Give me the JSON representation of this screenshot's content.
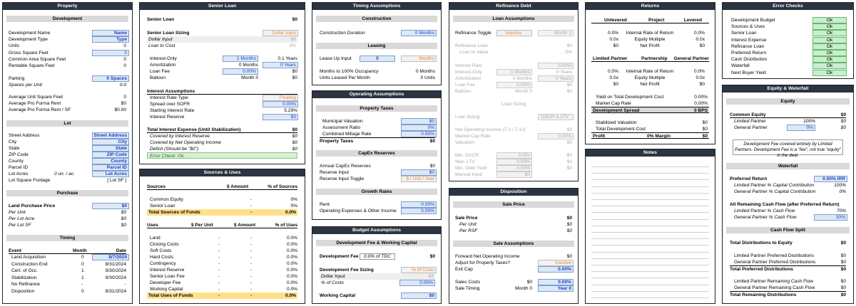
{
  "property": {
    "title": "Property",
    "sec_dev": "Development",
    "dev_name_lbl": "Development Name",
    "dev_name": "Name",
    "dev_type_lbl": "Development Type",
    "dev_type": "Type",
    "units_lbl": "Units",
    "units": "0",
    "gsf_lbl": "Gross Square Feet",
    "gsf": "0",
    "cam_lbl": "Common Area Square Feet",
    "cam": "0",
    "rsf_lbl": "Rentable Square Feet",
    "rsf": "0",
    "parking_lbl": "Parking",
    "parking": "0 Spaces",
    "spu_lbl": "Spaces per Unit",
    "spu": "0.0",
    "aus_lbl": "Average Unit Square Feet",
    "aus": "0",
    "apr_lbl": "Average Pro Forma Rent",
    "apr": "$0",
    "aprs_lbl": "Average Pro Forma Rent / SF",
    "aprs": "$0.00",
    "sec_lot": "Lot",
    "street_lbl": "Street Address",
    "street": "Street Address",
    "city_lbl": "City",
    "city": "City",
    "state_lbl": "State",
    "state": "State",
    "zip_lbl": "ZIP Code",
    "zip": "ZIP Code",
    "county_lbl": "County",
    "county": "County",
    "parcel_lbl": "Parcel ID",
    "parcel": "Parcel ID",
    "lotacres_lbl": "Lot Acres",
    "lotacres_un": "0 un. / ac.",
    "lotacres": "Lot Acres",
    "lotsf_lbl": "Lot Square Footage",
    "lotsf": "[ Lot SF ]",
    "sec_purchase": "Purchase",
    "lpp_lbl": "Land Purchase Price",
    "lpp": "$0",
    "pu_lbl": "Per Unit",
    "pu": "$0",
    "pla_lbl": "Per Lot Acre",
    "pla": "$0",
    "plsf_lbl": "Per Lot SF",
    "plsf": "$0",
    "sec_timing": "Timing",
    "h_event": "Event",
    "h_month": "Month",
    "h_date": "Date",
    "events": [
      {
        "e": "Land Acquisition",
        "m": "0",
        "d": "8/7/2024"
      },
      {
        "e": "Construction End",
        "m": "0",
        "d": "8/31/2024"
      },
      {
        "e": "Cert. of Occ.",
        "m": "1",
        "d": "9/30/2024"
      },
      {
        "e": "Stabilization",
        "m": "1",
        "d": "9/30/2024"
      },
      {
        "e": "No Refinance",
        "m": "-",
        "d": "-"
      },
      {
        "e": "Disposition",
        "m": "0",
        "d": "8/31/2024"
      }
    ]
  },
  "senior": {
    "title": "Senior Loan",
    "loan_lbl": "Senior Loan",
    "loan": "$0",
    "sizing_lbl": "Senior Loan Sizing",
    "sizing": "Dollar Input",
    "dollar_lbl": "Dollar Input",
    "dollar": "$0",
    "ltc_lbl": "Loan to Cost",
    "ltc": "0%",
    "io_lbl": "Interest-Only",
    "io": "1 Months",
    "io_y": "0.1 Years",
    "am_lbl": "Amortization",
    "am": "0 Months",
    "am_y": "0 Years",
    "fee_lbl": "Loan Fee",
    "fee": "0.00%",
    "fee_d": "$0",
    "balloon_lbl": "Balloon",
    "balloon_m": "Month 0",
    "balloon": "$0",
    "ia_lbl": "Interest Assumptions",
    "rt_lbl": "Interest Rate Type",
    "rt": "Floating",
    "spread_lbl": "Spread over SOFR",
    "spread": "0.00%",
    "sir_lbl": "Starting Interest Rate",
    "sir": "5.29%",
    "ir_lbl": "Interest Reserve",
    "ir": "$0",
    "tie_lbl": "Total Interest Expense (Until Stabilization)",
    "tie": "$0",
    "cir_lbl": "Covered by Interest Reserve",
    "cir": "$0",
    "cnoi_lbl": "Covered by Net Operating Income",
    "cnoi": "$0",
    "def_lbl": "Deficit (Should be \"$0\")",
    "def": "$0",
    "err": "Error Check: Ok."
  },
  "su": {
    "title": "Sources & Uses",
    "h_sources": "Sources",
    "h_amount": "$ Amount",
    "h_pct": "% of Sources",
    "sources": [
      {
        "n": "Common Equity",
        "a": "-",
        "p": "0%"
      },
      {
        "n": "Senior Loan",
        "a": "-",
        "p": "0%"
      }
    ],
    "ts_lbl": "Total Sources of Funds",
    "ts_a": "-",
    "ts_p": "0.0%",
    "h_uses": "Uses",
    "h_pu": "$ Per Unit",
    "h_amount2": "$ Amount",
    "h_pctu": "% of Uses",
    "uses": [
      {
        "n": "Land",
        "u": "-",
        "a": "-",
        "p": "0.0%"
      },
      {
        "n": "Closing Costs",
        "u": "-",
        "a": "-",
        "p": "0.0%"
      },
      {
        "n": "Soft Costs",
        "u": "-",
        "a": "-",
        "p": "0.0%"
      },
      {
        "n": "Hard Costs",
        "u": "-",
        "a": "-",
        "p": "0.0%"
      },
      {
        "n": "Contingency",
        "u": "-",
        "a": "-",
        "p": "0.0%"
      },
      {
        "n": "Interest Reserve",
        "u": "-",
        "a": "-",
        "p": "0.0%"
      },
      {
        "n": "Senior Loan Fee",
        "u": "-",
        "a": "-",
        "p": "0.0%"
      },
      {
        "n": "Developer Fee",
        "u": "-",
        "a": "-",
        "p": "0.0%"
      },
      {
        "n": "Working Capital",
        "u": "-",
        "a": "-",
        "p": "0.0%"
      }
    ],
    "tu_lbl": "Total Uses of Funds",
    "tu_u": "-",
    "tu_a": "-",
    "tu_p": "0.0%"
  },
  "timing": {
    "title": "Timing Assumptions",
    "sec_con": "Construction",
    "cd_lbl": "Construction Duration",
    "cd": "0 Months",
    "sec_lease": "Leasing",
    "lu_lbl": "Lease Up Input",
    "lu": "0",
    "lu_m": "Months",
    "m100_lbl": "Months to 100% Occupancy",
    "m100": "0 Months",
    "ulm_lbl": "Units Leased Per Month",
    "ulm": "0 Units"
  },
  "opa": {
    "title": "Operating Assumptions",
    "sec_tax": "Property Taxes",
    "mv_lbl": "Municipal Valuation",
    "mv": "$0",
    "ar_lbl": "Assessment Ratio",
    "ar": "0%",
    "cmr_lbl": "Combined Millage Rate",
    "cmr": "0.00%",
    "pt_lbl": "Property Taxes",
    "pt": "$0",
    "sec_capex": "CapEx Reserves",
    "acr_lbl": "Annual CapEx Reserves",
    "acr": "$0",
    "ri_lbl": "Reserve Input",
    "ri": "$0",
    "rit_lbl": "Reserve Input Toggle",
    "rit": "$ / Unit / Year",
    "sec_growth": "Growth Rates",
    "rent_lbl": "Rent",
    "rent": "0.00%",
    "oe_lbl": "Operating Expenses & Other Income",
    "oe": "0.00%"
  },
  "budget": {
    "title": "Budget Assumptions",
    "sec": "Development Fee & Working Capital",
    "df_lbl": "Development Fee",
    "df_pct": "0.0% of TDC",
    "df": "$0",
    "dfs_lbl": "Development Fee Sizing",
    "dfs": "% of Costs",
    "dfi_lbl": "Dollar Input",
    "dfi": "$0",
    "dfc_lbl": "% of Costs",
    "dfc": "0.00%",
    "wc_lbl": "Working Capital",
    "wc": "$0"
  },
  "refi": {
    "title": "Refinance Debt",
    "sec": "Loan Assumptions",
    "toggle_lbl": "Refinance Toggle",
    "toggle": "Inactive",
    "toggle_m": "Month 1",
    "rl_lbl": "Refinance Loan",
    "rl": "$0",
    "ltv_lbl": "Loan to Value",
    "ltv": "0%",
    "rate_lbl": "Interest Rate",
    "rate": "0.00%",
    "io_lbl": "Interest-Only",
    "io": "0 Months",
    "io_y": "0 Years",
    "am_lbl": "Amortization",
    "am": "0 Months",
    "am_y": "0 Years",
    "fee_lbl": "Loan Fee",
    "fee": "0.00%",
    "fee_d": "$0",
    "bal_lbl": "Balloon",
    "bal_m": "Month 0",
    "bal": "$0",
    "sizing_hdr": "Loan Sizing",
    "ls_lbl": "Loan Sizing",
    "ls": "DSCR & LTV",
    "noi_lbl": "Net Operating Income (T-3 / T-12)",
    "noi": "$0",
    "mcr_lbl": "Market Cap Rate",
    "mcr": "0.00%",
    "val_lbl": "Valuation",
    "val": "$0",
    "mdscr_lbl": "Min. DSCR",
    "mdscr": "0.00x",
    "mdscr_v": "$0",
    "mltv_lbl": "Max. LTV",
    "mltv": "0.00%",
    "mltv_v": "$0",
    "mdy_lbl": "Min. Debt Yield",
    "mdy": "0.00%",
    "mdy_v": "$0",
    "mi_lbl": "Manual Input",
    "mi": "$0"
  },
  "disp": {
    "title": "Disposition",
    "sec_sale": "Sale Price",
    "sp_lbl": "Sale Price",
    "sp": "$0",
    "pu_lbl": "Per Unit",
    "pu": "$0",
    "prsf_lbl": "Per RSF",
    "prsf": "$0",
    "sec_sa": "Sale Assumptions",
    "fnoi_lbl": "Forward Net Operating Income",
    "fnoi": "$0",
    "adj_lbl": "Adjust for Property Taxes?",
    "adj": "Inactive",
    "ec_lbl": "Exit Cap",
    "ec": "0.00%",
    "sc_lbl": "Sales Costs",
    "sc_d": "$0",
    "sc": "0.00%",
    "st_lbl": "Sale Timing",
    "st_m": "Month 0",
    "st": "Year 0"
  },
  "returns": {
    "title": "Returns",
    "h_unlev": "Unlevered",
    "h_proj": "Project",
    "h_lev": "Levered",
    "proj": [
      {
        "u": "0.0%",
        "n": "Internal Rate of Return",
        "l": "0.0%"
      },
      {
        "u": "0.0x",
        "n": "Equity Multiple",
        "l": "0.0x"
      },
      {
        "u": "$0",
        "n": "Net Profit",
        "l": "$0"
      }
    ],
    "h_lp": "Limited Partner",
    "h_pship": "Partnership",
    "h_gp": "General Partner",
    "part": [
      {
        "u": "0.0%",
        "n": "Internal Rate of Return",
        "l": "0.0%"
      },
      {
        "u": "0.0x",
        "n": "Equity Multiple",
        "l": "0.0x"
      },
      {
        "u": "$0",
        "n": "Net Profit",
        "l": "$0"
      }
    ],
    "ytdc_lbl": "Yield on Total Development Cost",
    "ytdc": "0.00%",
    "mcr_lbl": "Market Cap Rate",
    "mcr": "0.00%",
    "ds_lbl": "Development Spread",
    "ds": "0 BPS",
    "sv_lbl": "Stabilized Valuation",
    "sv": "$0",
    "tdc_lbl": "Total Development Cost",
    "tdc": "$0",
    "profit_lbl": "Profit",
    "profit_m": "0% Margin",
    "profit": "$0"
  },
  "notes": {
    "title": "Notes"
  },
  "errors": {
    "title": "Error Checks",
    "items": [
      {
        "n": "Development Budget",
        "v": "Ok"
      },
      {
        "n": "Sources & Uses",
        "v": "Ok"
      },
      {
        "n": "Senior Loan",
        "v": "Ok"
      },
      {
        "n": "Interest Expense",
        "v": "Ok"
      },
      {
        "n": "Refinance Loan",
        "v": "Ok"
      },
      {
        "n": "Preferred Return",
        "v": "Ok"
      },
      {
        "n": "Cash Distribution",
        "v": "Ok"
      },
      {
        "n": "Waterfall",
        "v": "Ok"
      },
      {
        "n": "Next Buyer Yield",
        "v": "Ok"
      }
    ]
  },
  "eqw": {
    "title": "Equity & Waterfall",
    "sec_eq": "Equity",
    "ce_lbl": "Common Equity",
    "ce": "$0",
    "lp_lbl": "Limited Partner",
    "lp_p": "100%",
    "lp": "$0",
    "gp_lbl": "General Partner",
    "gp_p": "0%",
    "gp": "$0",
    "note": "Development Fee covered entirely by Limited Partners. Development Fee is a \"fee\", not true \"equity\" in the deal.",
    "sec_wf": "Waterfall",
    "pr_lbl": "Preferred Return",
    "pr": "0.00% IRR",
    "lpcc_lbl": "Limited Partner % Capital Contribution",
    "lpcc": "100%",
    "gpcc_lbl": "General Partner % Capital Contribution",
    "gpcc": "0%",
    "arcf_lbl": "All Remaining Cash Flow (after Preferred Return)",
    "lpcf_lbl": "Limited Partner % Cash Flow",
    "lpcf": "70%",
    "gpcf_lbl": "General Partner % Cash Flow",
    "gpcf": "30%",
    "sec_cfs": "Cash Flow Split",
    "tde_lbl": "Total Distributions to Equity",
    "tde": "$0",
    "lppd_lbl": "Limited Partner Preferred Distributions",
    "lppd": "$0",
    "gppd_lbl": "General Partner Preferred Distributions",
    "gppd": "$0",
    "tpd_lbl": "Total Preferred Distributions",
    "tpd": "$0",
    "lprc_lbl": "Limited Partner Remaining Cash Flow",
    "lprc": "$0",
    "gprc_lbl": "General Partner Remaining Cash Flow",
    "gprc": "$0",
    "trd_lbl": "Total Remaining Distributions",
    "trd": "$0"
  }
}
